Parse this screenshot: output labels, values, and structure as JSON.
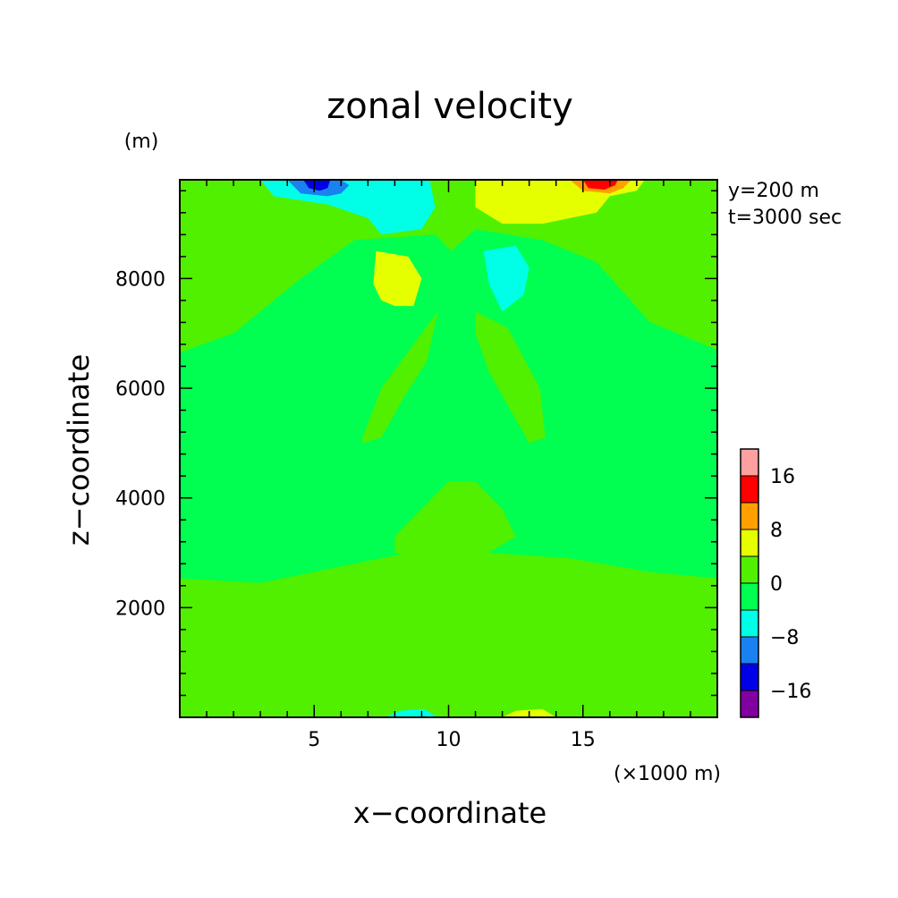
{
  "chart_data": {
    "type": "heatmap",
    "title": "zonal velocity",
    "xlabel": "x−coordinate",
    "ylabel": "z−coordinate",
    "x_unit": "(×1000 m)",
    "y_unit": "(m)",
    "annotations": [
      "y=200 m",
      "t=3000 sec"
    ],
    "xlim": [
      0,
      20
    ],
    "ylim": [
      0,
      9800
    ],
    "x_ticks": [
      5,
      10,
      15
    ],
    "y_ticks": [
      2000,
      4000,
      6000,
      8000
    ],
    "colorbar": {
      "levels": [
        -20,
        -16,
        -12,
        -8,
        -4,
        0,
        4,
        8,
        12,
        16,
        20
      ],
      "colors": [
        "#8000a0",
        "#0000e6",
        "#1a82f0",
        "#00ffe6",
        "#00ff50",
        "#50f000",
        "#e6ff00",
        "#ffa000",
        "#ff0000",
        "#ffa0a0"
      ],
      "tick_labels": [
        "16",
        "8",
        "0",
        "−8",
        "−16"
      ],
      "tick_values": [
        16,
        8,
        0,
        -8,
        -16
      ]
    },
    "background_color": "#00ff50",
    "regions": [
      {
        "name": "upper-left-positive",
        "value": 2,
        "color": "#50f000",
        "x": [
          0,
          0,
          2,
          4.5,
          6.5,
          9.5,
          10.1,
          10.1,
          0
        ],
        "y": [
          9800,
          6650,
          7000,
          8000,
          8700,
          8800,
          8500,
          9800,
          9800
        ]
      },
      {
        "name": "upper-right-positive",
        "value": 2,
        "color": "#50f000",
        "x": [
          10.1,
          10.1,
          11,
          13.5,
          15.5,
          17.5,
          20,
          20,
          10.1
        ],
        "y": [
          9800,
          8500,
          8900,
          8700,
          8300,
          7200,
          6700,
          9800,
          9800
        ]
      },
      {
        "name": "lower-band-positive",
        "value": 2,
        "color": "#50f000",
        "x": [
          0,
          0,
          20,
          20,
          17.5,
          14.5,
          11.5,
          10.1,
          8,
          5.5,
          3,
          0
        ],
        "y": [
          2530,
          0,
          0,
          2530,
          2650,
          2900,
          3000,
          3100,
          2950,
          2700,
          2450,
          2530
        ]
      },
      {
        "name": "mid-left-positive",
        "value": 2,
        "color": "#50f000",
        "x": [
          6.8,
          7.5,
          9,
          9.6,
          9.2,
          8.3,
          7.5,
          6.8,
          6.8
        ],
        "y": [
          5100,
          6000,
          7000,
          7400,
          6500,
          5800,
          5100,
          5000,
          5100
        ]
      },
      {
        "name": "mid-right-positive",
        "value": 2,
        "color": "#50f000",
        "x": [
          11,
          12.2,
          13.4,
          13.6,
          13,
          11.5,
          11,
          11
        ],
        "y": [
          7400,
          7100,
          6000,
          5100,
          5000,
          6300,
          7000,
          7400
        ]
      },
      {
        "name": "center-column-positive",
        "value": 2,
        "color": "#50f000",
        "x": [
          8,
          9,
          10,
          11,
          12,
          12.5,
          11.5,
          10,
          8.5,
          8,
          8
        ],
        "y": [
          3300,
          3800,
          4300,
          4300,
          3800,
          3300,
          3000,
          3100,
          2950,
          3000,
          3300
        ]
      },
      {
        "name": "top-left-minus-8",
        "value": -6,
        "color": "#00ffe6",
        "x": [
          3,
          3.5,
          5.5,
          7,
          7.5,
          9,
          9.5,
          9.3,
          8.5,
          3
        ],
        "y": [
          9800,
          9500,
          9350,
          9100,
          8800,
          8900,
          9300,
          9800,
          9800,
          9800
        ]
      },
      {
        "name": "top-left-minus-12",
        "value": -10,
        "color": "#1a82f0",
        "x": [
          4,
          4.5,
          5.5,
          6,
          6.3,
          6,
          4
        ],
        "y": [
          9800,
          9550,
          9500,
          9550,
          9700,
          9800,
          9800
        ]
      },
      {
        "name": "top-left-minus-16",
        "value": -14,
        "color": "#0000e6",
        "x": [
          4.6,
          4.8,
          5.2,
          5.5,
          5.6,
          4.6
        ],
        "y": [
          9800,
          9650,
          9600,
          9650,
          9800,
          9800
        ]
      },
      {
        "name": "top-right-plus-4",
        "value": 6,
        "color": "#e6ff00",
        "x": [
          11,
          11,
          12,
          13.5,
          15.5,
          16,
          17,
          17.3,
          11
        ],
        "y": [
          9800,
          9300,
          9000,
          9000,
          9200,
          9500,
          9600,
          9800,
          9800
        ]
      },
      {
        "name": "top-right-plus-8",
        "value": 10,
        "color": "#ffa000",
        "x": [
          14.5,
          15,
          16,
          16.5,
          16.8,
          14.5
        ],
        "y": [
          9800,
          9600,
          9550,
          9650,
          9800,
          9800
        ]
      },
      {
        "name": "top-right-plus-12",
        "value": 14,
        "color": "#ff0000",
        "x": [
          15,
          15.2,
          15.8,
          16.2,
          16.3,
          15
        ],
        "y": [
          9800,
          9650,
          9620,
          9700,
          9800,
          9800
        ]
      },
      {
        "name": "left-blob-plus-4",
        "value": 6,
        "color": "#e6ff00",
        "x": [
          7.3,
          8.5,
          9,
          8.7,
          8,
          7.5,
          7.2,
          7.3
        ],
        "y": [
          8500,
          8400,
          8000,
          7500,
          7500,
          7600,
          7900,
          8500
        ]
      },
      {
        "name": "right-blob-minus-8",
        "value": -6,
        "color": "#00ffe6",
        "x": [
          11.3,
          12.5,
          13,
          12.8,
          12,
          11.5,
          11.3
        ],
        "y": [
          8500,
          8600,
          8200,
          7700,
          7400,
          7900,
          8500
        ]
      },
      {
        "name": "bottom-minus-8",
        "value": -6,
        "color": "#00ffe6",
        "x": [
          7.6,
          8.2,
          9.1,
          9.6,
          7.6
        ],
        "y": [
          0,
          120,
          150,
          0,
          0
        ]
      },
      {
        "name": "bottom-plus-4",
        "value": 6,
        "color": "#e6ff00",
        "x": [
          12,
          12.5,
          13.5,
          14,
          12
        ],
        "y": [
          0,
          120,
          150,
          0,
          0
        ]
      }
    ],
    "grid": false,
    "legend": "colorbar right-bottom"
  }
}
